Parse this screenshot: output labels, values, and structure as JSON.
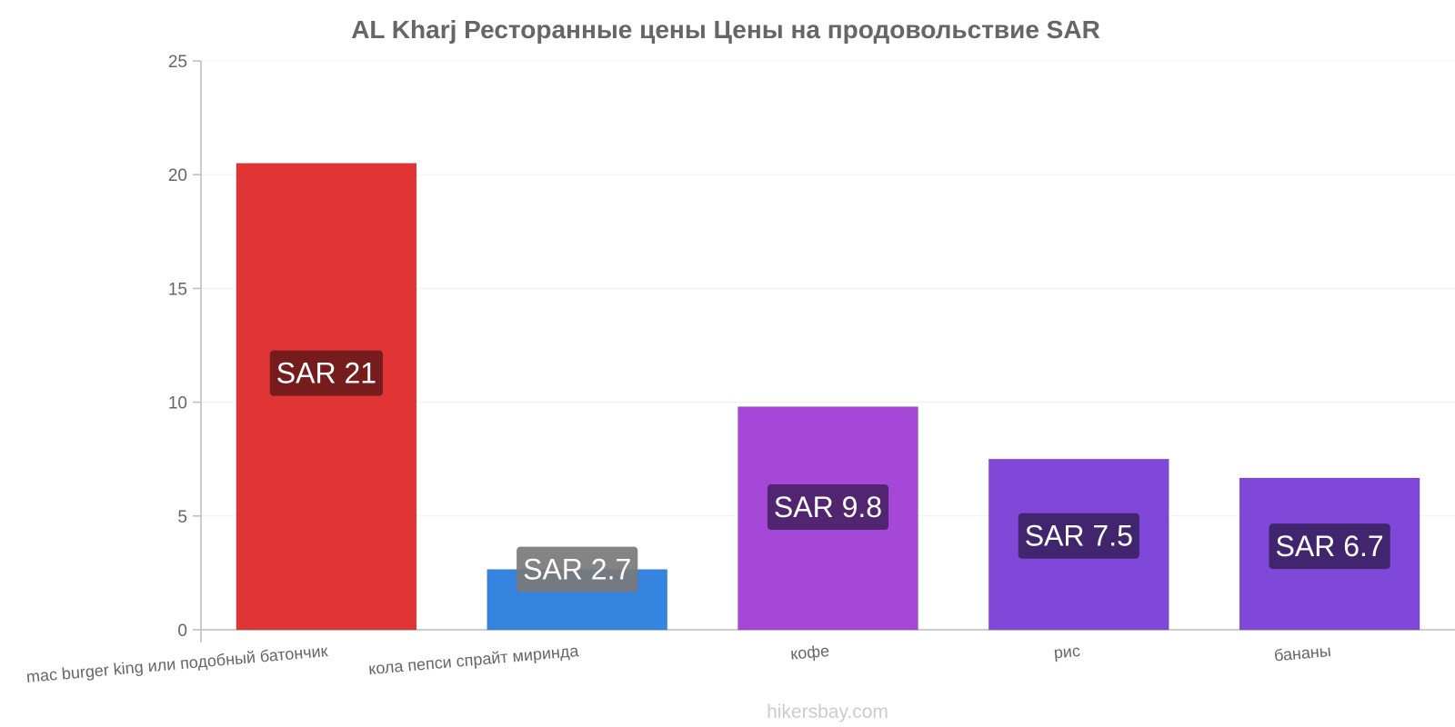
{
  "chart_data": {
    "type": "bar",
    "title": "AL Kharj Ресторанные цены Цены на продовольствие SAR",
    "categories": [
      "mac burger king или подобный батончик",
      "кола пепси спрайт миринда",
      "кофе",
      "рис",
      "бананы"
    ],
    "values": [
      20.5,
      2.65,
      9.8,
      7.5,
      6.67
    ],
    "data_labels": [
      "SAR 21",
      "SAR 2.7",
      "SAR 9.8",
      "SAR 7.5",
      "SAR 6.7"
    ],
    "bar_colors": [
      "#e13535",
      "#3584e0",
      "#a548d8",
      "#8048d8",
      "#8048d8"
    ],
    "label_bg_colors": [
      "#6e1a1a",
      "#7a7a7a",
      "#4a2366",
      "#3c2366",
      "#3c2366"
    ],
    "ylim": [
      0,
      25
    ],
    "yticks": [
      0,
      5,
      10,
      15,
      20,
      25
    ],
    "xlabel": "",
    "ylabel": "",
    "grid": true
  },
  "watermark": "hikersbay.com"
}
